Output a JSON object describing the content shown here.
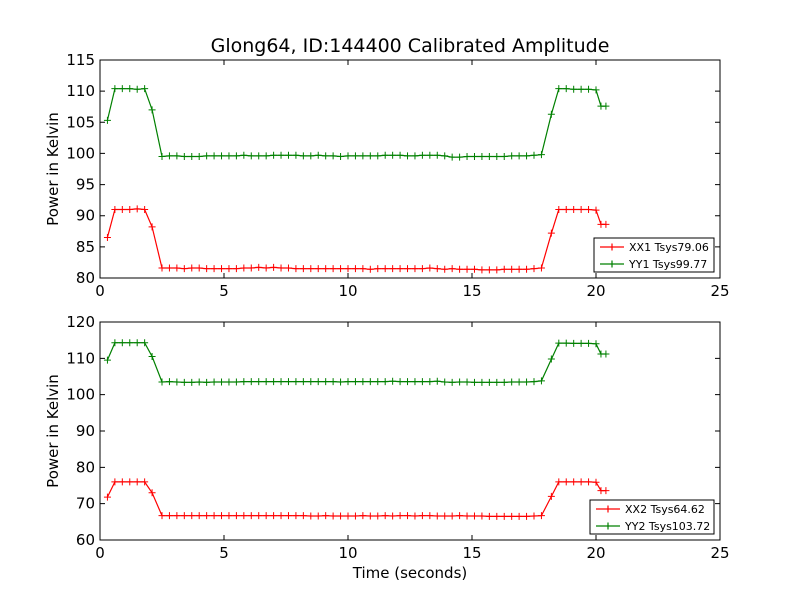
{
  "figure": {
    "title": "Glong64, ID:144400 Calibrated Amplitude",
    "xlabel": "Time (seconds)"
  },
  "chart_data": [
    {
      "type": "line",
      "title": "Glong64, ID:144400 Calibrated Amplitude",
      "xlabel": "",
      "ylabel": "Power in Kelvin",
      "xlim": [
        0,
        25
      ],
      "ylim": [
        80,
        115
      ],
      "xticks": [
        "0",
        "5",
        "10",
        "15",
        "20",
        "25"
      ],
      "yticks": [
        "80",
        "85",
        "90",
        "95",
        "100",
        "105",
        "110",
        "115"
      ],
      "grid": false,
      "legend_position": "lower-right",
      "x": [
        0.3,
        0.6,
        0.9,
        1.2,
        1.5,
        1.8,
        2.1,
        2.5,
        2.8,
        3.1,
        3.4,
        3.7,
        4.0,
        4.3,
        4.6,
        4.9,
        5.2,
        5.5,
        5.8,
        6.1,
        6.4,
        6.7,
        7.0,
        7.3,
        7.6,
        7.9,
        8.2,
        8.5,
        8.8,
        9.1,
        9.4,
        9.7,
        10.0,
        10.3,
        10.6,
        10.9,
        11.2,
        11.5,
        11.8,
        12.1,
        12.4,
        12.7,
        13.0,
        13.3,
        13.6,
        13.9,
        14.2,
        14.5,
        14.8,
        15.1,
        15.4,
        15.7,
        16.0,
        16.3,
        16.6,
        16.9,
        17.2,
        17.5,
        17.8,
        18.2,
        18.5,
        18.8,
        19.1,
        19.4,
        19.7,
        20.0,
        20.2,
        20.4
      ],
      "series": [
        {
          "name": "XX1 Tsys79.06",
          "color": "#ff0000",
          "values": [
            86.5,
            91.0,
            91.0,
            91.0,
            91.1,
            91.0,
            88.2,
            81.6,
            81.6,
            81.6,
            81.5,
            81.6,
            81.6,
            81.5,
            81.5,
            81.5,
            81.5,
            81.5,
            81.6,
            81.6,
            81.7,
            81.6,
            81.7,
            81.6,
            81.6,
            81.5,
            81.5,
            81.5,
            81.5,
            81.5,
            81.5,
            81.5,
            81.5,
            81.5,
            81.5,
            81.4,
            81.5,
            81.5,
            81.5,
            81.5,
            81.5,
            81.5,
            81.5,
            81.6,
            81.5,
            81.4,
            81.5,
            81.4,
            81.4,
            81.4,
            81.3,
            81.3,
            81.3,
            81.4,
            81.4,
            81.4,
            81.4,
            81.5,
            81.6,
            87.2,
            91.0,
            91.0,
            91.0,
            91.0,
            91.0,
            90.9,
            88.6,
            88.6
          ]
        },
        {
          "name": "YY1 Tsys99.77",
          "color": "#008000",
          "values": [
            105.3,
            110.4,
            110.4,
            110.4,
            110.3,
            110.4,
            107.0,
            99.5,
            99.6,
            99.6,
            99.5,
            99.5,
            99.5,
            99.6,
            99.6,
            99.6,
            99.6,
            99.6,
            99.7,
            99.6,
            99.6,
            99.6,
            99.7,
            99.7,
            99.7,
            99.7,
            99.6,
            99.6,
            99.7,
            99.6,
            99.6,
            99.5,
            99.6,
            99.6,
            99.6,
            99.6,
            99.6,
            99.7,
            99.7,
            99.7,
            99.6,
            99.6,
            99.7,
            99.7,
            99.7,
            99.6,
            99.4,
            99.4,
            99.5,
            99.5,
            99.5,
            99.5,
            99.5,
            99.5,
            99.6,
            99.6,
            99.6,
            99.7,
            99.8,
            106.3,
            110.4,
            110.4,
            110.3,
            110.3,
            110.3,
            110.2,
            107.6,
            107.6
          ]
        }
      ]
    },
    {
      "type": "line",
      "title": "",
      "xlabel": "Time (seconds)",
      "ylabel": "Power in Kelvin",
      "xlim": [
        0,
        25
      ],
      "ylim": [
        60,
        120
      ],
      "xticks": [
        "0",
        "5",
        "10",
        "15",
        "20",
        "25"
      ],
      "yticks": [
        "60",
        "70",
        "80",
        "90",
        "100",
        "110",
        "120"
      ],
      "grid": false,
      "legend_position": "lower-right",
      "x": [
        0.3,
        0.6,
        0.9,
        1.2,
        1.5,
        1.8,
        2.1,
        2.5,
        2.8,
        3.1,
        3.4,
        3.7,
        4.0,
        4.3,
        4.6,
        4.9,
        5.2,
        5.5,
        5.8,
        6.1,
        6.4,
        6.7,
        7.0,
        7.3,
        7.6,
        7.9,
        8.2,
        8.5,
        8.8,
        9.1,
        9.4,
        9.7,
        10.0,
        10.3,
        10.6,
        10.9,
        11.2,
        11.5,
        11.8,
        12.1,
        12.4,
        12.7,
        13.0,
        13.3,
        13.6,
        13.9,
        14.2,
        14.5,
        14.8,
        15.1,
        15.4,
        15.7,
        16.0,
        16.3,
        16.6,
        16.9,
        17.2,
        17.5,
        17.8,
        18.2,
        18.5,
        18.8,
        19.1,
        19.4,
        19.7,
        20.0,
        20.2,
        20.4
      ],
      "series": [
        {
          "name": "XX2 Tsys64.62",
          "color": "#ff0000",
          "values": [
            71.8,
            76.0,
            76.0,
            76.0,
            76.0,
            76.0,
            73.0,
            66.7,
            66.7,
            66.7,
            66.7,
            66.7,
            66.7,
            66.7,
            66.7,
            66.7,
            66.7,
            66.7,
            66.7,
            66.7,
            66.7,
            66.7,
            66.7,
            66.7,
            66.7,
            66.7,
            66.7,
            66.6,
            66.6,
            66.7,
            66.6,
            66.6,
            66.6,
            66.6,
            66.7,
            66.6,
            66.6,
            66.7,
            66.6,
            66.7,
            66.7,
            66.6,
            66.7,
            66.7,
            66.6,
            66.6,
            66.6,
            66.7,
            66.6,
            66.6,
            66.6,
            66.5,
            66.5,
            66.5,
            66.5,
            66.5,
            66.5,
            66.6,
            66.7,
            72.0,
            76.0,
            76.0,
            76.0,
            76.0,
            76.0,
            75.9,
            73.6,
            73.6
          ]
        },
        {
          "name": "YY2 Tsys103.72",
          "color": "#008000",
          "values": [
            109.5,
            114.3,
            114.3,
            114.3,
            114.3,
            114.3,
            110.5,
            103.5,
            103.6,
            103.5,
            103.4,
            103.4,
            103.5,
            103.4,
            103.5,
            103.5,
            103.5,
            103.5,
            103.6,
            103.6,
            103.6,
            103.6,
            103.6,
            103.6,
            103.6,
            103.6,
            103.6,
            103.6,
            103.6,
            103.6,
            103.6,
            103.5,
            103.6,
            103.6,
            103.6,
            103.6,
            103.6,
            103.6,
            103.7,
            103.6,
            103.6,
            103.6,
            103.6,
            103.6,
            103.7,
            103.5,
            103.4,
            103.5,
            103.5,
            103.4,
            103.4,
            103.4,
            103.4,
            103.4,
            103.5,
            103.5,
            103.5,
            103.6,
            103.8,
            109.8,
            114.2,
            114.2,
            114.1,
            114.1,
            114.1,
            114.0,
            111.2,
            111.2
          ]
        }
      ]
    }
  ]
}
